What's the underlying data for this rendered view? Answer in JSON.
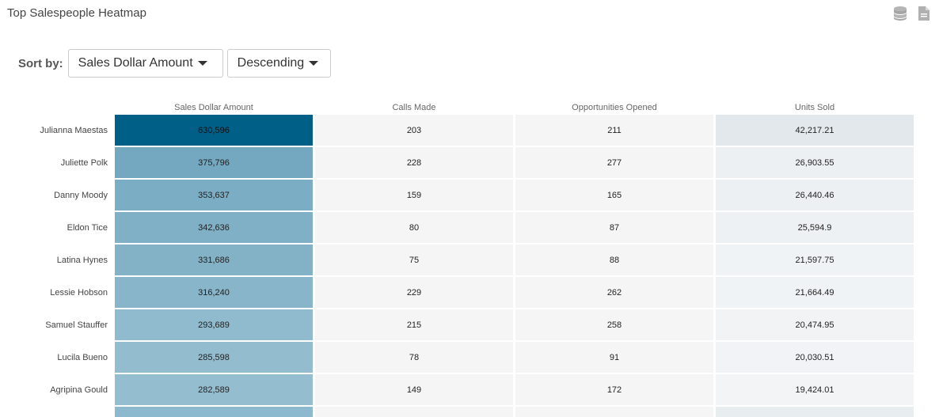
{
  "title": "Top Salespeople Heatmap",
  "icons": [
    "database-icon",
    "export-file-icon"
  ],
  "sort": {
    "label": "Sort by:",
    "metric": "Sales Dollar Amount",
    "order": "Descending"
  },
  "colors": {
    "scale_low": "#eef1f3",
    "scale_high": "#005f87"
  },
  "chart_data": {
    "type": "heatmap",
    "title": "Top Salespeople Heatmap",
    "columns": [
      "Sales Dollar Amount",
      "Calls Made",
      "Opportunities Opened",
      "Units Sold"
    ],
    "rows": [
      {
        "name": "Julianna Maestas",
        "values": [
          "630,596",
          "203",
          "211",
          "42,217.21"
        ],
        "sales": 630596,
        "units": 42217.21
      },
      {
        "name": "Juliette Polk",
        "values": [
          "375,796",
          "228",
          "277",
          "26,903.55"
        ],
        "sales": 375796,
        "units": 26903.55
      },
      {
        "name": "Danny Moody",
        "values": [
          "353,637",
          "159",
          "165",
          "26,440.46"
        ],
        "sales": 353637,
        "units": 26440.46
      },
      {
        "name": "Eldon Tice",
        "values": [
          "342,636",
          "80",
          "87",
          "25,594.9"
        ],
        "sales": 342636,
        "units": 25594.9
      },
      {
        "name": "Latina Hynes",
        "values": [
          "331,686",
          "75",
          "88",
          "21,597.75"
        ],
        "sales": 331686,
        "units": 21597.75
      },
      {
        "name": "Lessie Hobson",
        "values": [
          "316,240",
          "229",
          "262",
          "21,664.49"
        ],
        "sales": 316240,
        "units": 21664.49
      },
      {
        "name": "Samuel Stauffer",
        "values": [
          "293,689",
          "215",
          "258",
          "20,474.95"
        ],
        "sales": 293689,
        "units": 20474.95
      },
      {
        "name": "Lucila Bueno",
        "values": [
          "285,598",
          "78",
          "91",
          "20,030.51"
        ],
        "sales": 285598,
        "units": 20030.51
      },
      {
        "name": "Agripina Gould",
        "values": [
          "282,589",
          "149",
          "172",
          "19,424.01"
        ],
        "sales": 282589,
        "units": 19424.01
      }
    ]
  }
}
